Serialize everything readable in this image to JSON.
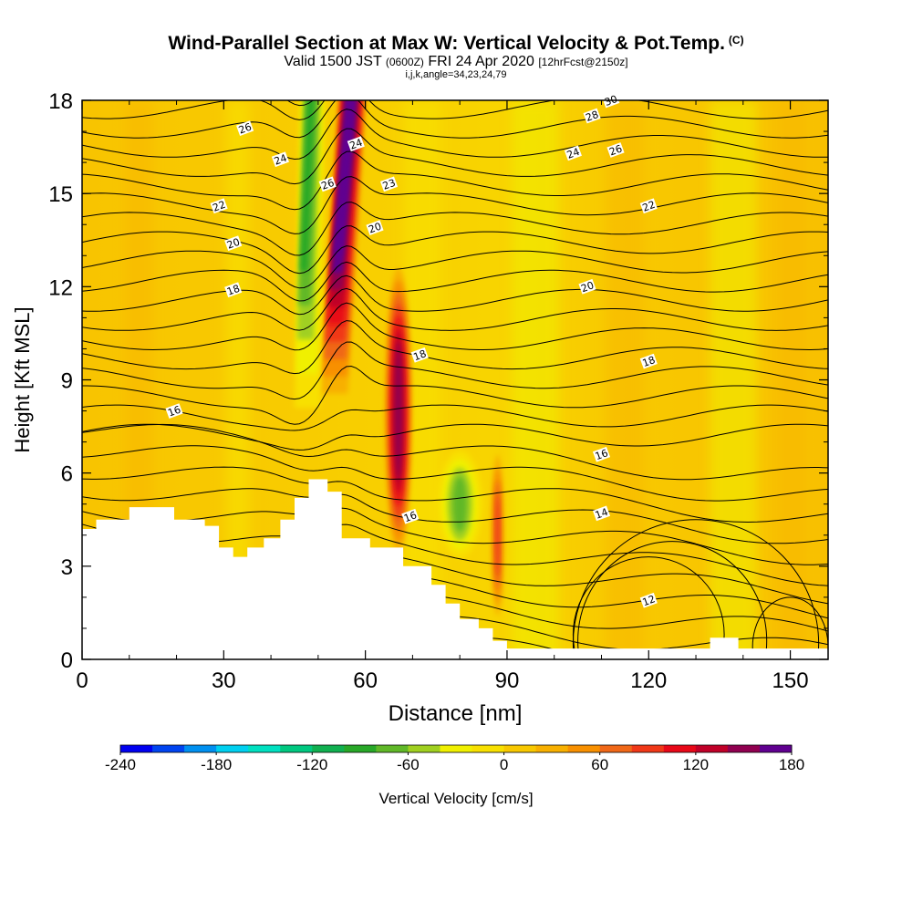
{
  "title": {
    "main": "Wind-Parallel Section at Max W: Vertical Velocity & Pot.Temp.",
    "copyright": "(C)",
    "valid_prefix": "Valid 1500 JST",
    "valid_utc": "(0600Z)",
    "valid_date": "FRI 24 Apr 2020",
    "forecast": "[12hrFcst@2150z]",
    "indices": "i,j,k,angle=34,23,24,79"
  },
  "chart_data": {
    "type": "heatmap",
    "xlabel": "Distance [nm]",
    "ylabel": "Height [Kft MSL]",
    "xlim": [
      0,
      158
    ],
    "ylim": [
      0,
      18
    ],
    "x_ticks": [
      0,
      30,
      60,
      90,
      120,
      150
    ],
    "y_ticks": [
      0,
      3,
      6,
      9,
      12,
      15,
      18
    ],
    "grid": false,
    "colorbar": {
      "label": "Vertical Velocity [cm/s]",
      "tick_labels": [
        -240,
        -180,
        -120,
        -60,
        0,
        60,
        120,
        180
      ],
      "range": [
        -240,
        180
      ],
      "colors": [
        "#0000f0",
        "#0044f0",
        "#0090f0",
        "#00d0f0",
        "#00e0c0",
        "#00c880",
        "#10b050",
        "#28a828",
        "#60b828",
        "#a0d020",
        "#f0f000",
        "#f8e000",
        "#f8c800",
        "#f8b000",
        "#f89000",
        "#f06818",
        "#f03818",
        "#e80818",
        "#c00028",
        "#900050",
        "#600090"
      ]
    },
    "w_field": {
      "description_units": "cm/s",
      "features": [
        {
          "kind": "updraft",
          "x": 55,
          "z_bottom": 8,
          "z_top": 18,
          "peak": 180
        },
        {
          "kind": "updraft",
          "x": 67,
          "z_bottom": 3,
          "z_top": 13,
          "peak": 130
        },
        {
          "kind": "downdraft",
          "x": 46,
          "z_bottom": 7,
          "z_top": 18,
          "peak": -90
        },
        {
          "kind": "downdraft",
          "x": 80,
          "z_bottom": 3,
          "z_top": 7,
          "peak": -70
        },
        {
          "kind": "updraft",
          "x": 88,
          "z_bottom": 1,
          "z_top": 7,
          "peak": 70
        }
      ]
    },
    "theta_contours": {
      "units": "C",
      "labels": [
        {
          "value": "30",
          "x": 112,
          "z": 18.0
        },
        {
          "value": "28",
          "x": 108,
          "z": 17.5
        },
        {
          "value": "26",
          "x": 34.5,
          "z": 17.1
        },
        {
          "value": "26",
          "x": 113,
          "z": 16.4
        },
        {
          "value": "24",
          "x": 42,
          "z": 16.1
        },
        {
          "value": "24",
          "x": 58,
          "z": 16.6
        },
        {
          "value": "24",
          "x": 104,
          "z": 16.3
        },
        {
          "value": "26",
          "x": 52,
          "z": 15.3
        },
        {
          "value": "23",
          "x": 65,
          "z": 15.3
        },
        {
          "value": "22",
          "x": 29,
          "z": 14.6
        },
        {
          "value": "22",
          "x": 120,
          "z": 14.6
        },
        {
          "value": "20",
          "x": 62,
          "z": 13.9
        },
        {
          "value": "20",
          "x": 32,
          "z": 13.4
        },
        {
          "value": "20",
          "x": 107,
          "z": 12.0
        },
        {
          "value": "18",
          "x": 32,
          "z": 11.9
        },
        {
          "value": "18",
          "x": 71.5,
          "z": 9.8
        },
        {
          "value": "18",
          "x": 120,
          "z": 9.6
        },
        {
          "value": "16",
          "x": 19.5,
          "z": 8.0
        },
        {
          "value": "16",
          "x": 110,
          "z": 6.6
        },
        {
          "value": "16",
          "x": 69.5,
          "z": 4.6
        },
        {
          "value": "14",
          "x": 110,
          "z": 4.7
        },
        {
          "value": "12",
          "x": 120,
          "z": 1.9
        }
      ]
    },
    "terrain": [
      [
        0,
        4.2
      ],
      [
        3,
        4.2
      ],
      [
        3,
        4.5
      ],
      [
        10,
        4.5
      ],
      [
        10,
        4.9
      ],
      [
        19.5,
        4.9
      ],
      [
        19.5,
        4.5
      ],
      [
        26,
        4.5
      ],
      [
        26,
        4.3
      ],
      [
        29,
        4.3
      ],
      [
        29,
        3.6
      ],
      [
        32,
        3.6
      ],
      [
        32,
        3.3
      ],
      [
        35,
        3.3
      ],
      [
        35,
        3.6
      ],
      [
        38.5,
        3.6
      ],
      [
        38.5,
        3.9
      ],
      [
        42,
        3.9
      ],
      [
        42,
        4.5
      ],
      [
        45,
        4.5
      ],
      [
        45,
        5.2
      ],
      [
        48,
        5.2
      ],
      [
        48,
        5.8
      ],
      [
        52,
        5.8
      ],
      [
        52,
        5.4
      ],
      [
        55,
        5.4
      ],
      [
        55,
        3.9
      ],
      [
        61,
        3.9
      ],
      [
        61,
        3.6
      ],
      [
        68,
        3.6
      ],
      [
        68,
        3.0
      ],
      [
        74,
        3.0
      ],
      [
        74,
        2.4
      ],
      [
        77,
        2.4
      ],
      [
        77,
        1.8
      ],
      [
        80,
        1.8
      ],
      [
        80,
        1.3
      ],
      [
        84,
        1.3
      ],
      [
        84,
        1.0
      ],
      [
        87,
        1.0
      ],
      [
        87,
        0.6
      ],
      [
        90,
        0.6
      ],
      [
        90,
        0.35
      ],
      [
        133,
        0.35
      ],
      [
        133,
        0.7
      ],
      [
        139,
        0.7
      ],
      [
        139,
        0.35
      ],
      [
        158,
        0.35
      ],
      [
        158,
        0
      ],
      [
        0,
        0
      ]
    ]
  }
}
